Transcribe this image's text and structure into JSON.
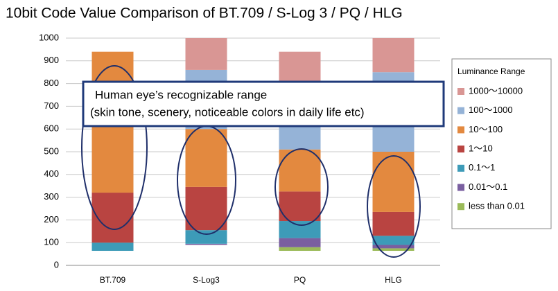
{
  "chart_data": {
    "type": "bar",
    "stacked": true,
    "title": "10bit Code Value Comparison of BT.709 / S-Log 3 / PQ / HLG",
    "categories": [
      "BT.709",
      "S-Log3",
      "PQ",
      "HLG"
    ],
    "ylim": [
      0,
      1000
    ],
    "yticks": [
      0,
      100,
      200,
      300,
      400,
      500,
      600,
      700,
      800,
      900,
      1000
    ],
    "grid": true,
    "legend": {
      "title": "Luminance Range",
      "position": "right"
    },
    "annotation": [
      "Human eye’s recognizable range",
      "(skin tone, scenery, noticeable colors in daily life etc)"
    ],
    "series": [
      {
        "color": "none",
        "values": [
          64,
          90,
          64,
          64
        ]
      },
      {
        "name": "less than 0.01",
        "color": "#9bbb59",
        "values": [
          0,
          0,
          16,
          11
        ]
      },
      {
        "name": "0.01～0.1",
        "color": "#7a5fa0",
        "values": [
          0,
          5,
          40,
          15
        ]
      },
      {
        "name": "0.1～1",
        "color": "#3d9bb8",
        "values": [
          36,
          60,
          75,
          40
        ]
      },
      {
        "name": "1～10",
        "color": "#b94441",
        "values": [
          220,
          190,
          130,
          105
        ]
      },
      {
        "name": "10～100",
        "color": "#e3893f",
        "values": [
          620,
          255,
          185,
          265
        ]
      },
      {
        "name": "100～1000",
        "color": "#95b3d7",
        "values": [
          0,
          260,
          260,
          350
        ]
      },
      {
        "name": "1000～10000",
        "color": "#d99694",
        "values": [
          0,
          140,
          170,
          150
        ]
      }
    ]
  }
}
